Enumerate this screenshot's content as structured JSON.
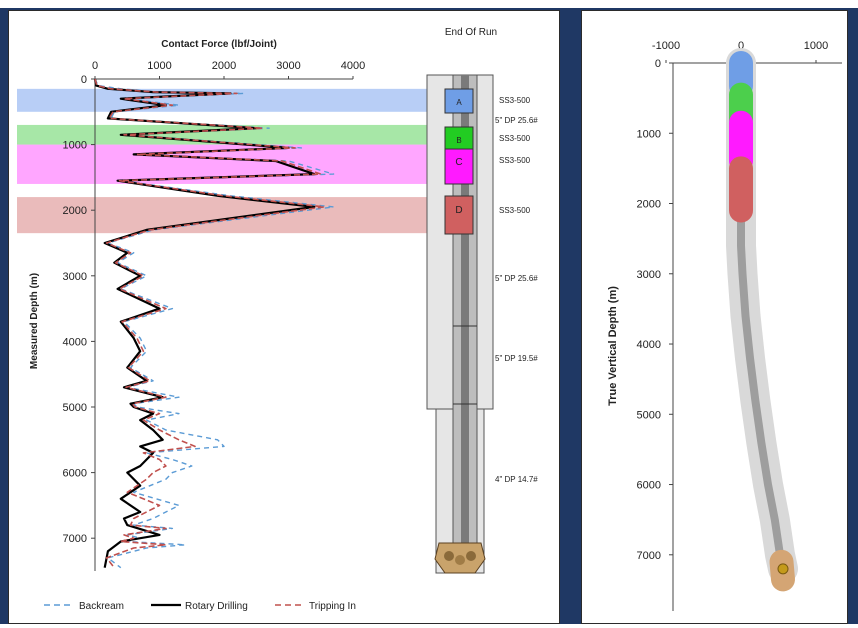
{
  "left_chart": {
    "title": "Contact Force (lbf/Joint)",
    "ylabel": "Measured Depth (m)",
    "x_ticks": [
      "0",
      "1000",
      "2000",
      "3000",
      "4000"
    ],
    "y_ticks": [
      "0",
      "1000",
      "2000",
      "3000",
      "4000",
      "5000",
      "6000",
      "7000"
    ],
    "legend": [
      "Backream",
      "Rotary Drilling",
      "Tripping In"
    ]
  },
  "schematic": {
    "title": "End Of Run",
    "labels": [
      "SS3-500",
      "5\" DP 25.6#",
      "SS3-500",
      "SS3-500",
      "SS3-500",
      "5\" DP 25.6#",
      "5\" DP 19.5#",
      "4\" DP 14.7#"
    ],
    "zone_letters": [
      "A",
      "B",
      "C",
      "D"
    ]
  },
  "right_chart": {
    "ylabel": "True Vertical Depth (m)",
    "x_ticks": [
      "-1000",
      "0",
      "1000"
    ],
    "y_ticks": [
      "0",
      "1000",
      "2000",
      "3000",
      "4000",
      "5000",
      "6000",
      "7000"
    ]
  },
  "chart_data": [
    {
      "type": "line",
      "title": "Contact Force (lbf/Joint)",
      "xlabel": "Contact Force (lbf/Joint)",
      "ylabel": "Measured Depth (m)",
      "xlim": [
        0,
        4000
      ],
      "ylim": [
        7500,
        0
      ],
      "legend_position": "bottom",
      "highlight_bands": [
        {
          "zone": "A",
          "from": 150,
          "to": 500,
          "color": "#7ea6ee"
        },
        {
          "zone": "B",
          "from": 700,
          "to": 1000,
          "color": "#5fd35f"
        },
        {
          "zone": "C",
          "from": 1000,
          "to": 1600,
          "color": "#ff5cff"
        },
        {
          "zone": "D",
          "from": 1800,
          "to": 2350,
          "color": "#d88484"
        }
      ],
      "series": [
        {
          "name": "Backream",
          "color": "#5b9bd5",
          "x": [
            0,
            50,
            400,
            1000,
            2300,
            500,
            1300,
            300,
            250,
            2700,
            500,
            3200,
            700,
            3000,
            3700,
            400,
            2100,
            3700,
            900,
            200,
            600,
            350,
            800,
            400,
            1200,
            450,
            700,
            800,
            550,
            900,
            500,
            1300,
            600,
            650,
            1300,
            800,
            1100,
            1900,
            2000,
            800,
            1200,
            1500,
            1200,
            1100,
            600,
            1300,
            900,
            600,
            1200,
            500,
            700,
            500,
            1400,
            800,
            200,
            400
          ],
          "y": [
            0,
            100,
            150,
            200,
            220,
            300,
            400,
            500,
            600,
            750,
            850,
            1050,
            1150,
            1250,
            1450,
            1550,
            1780,
            1950,
            2300,
            2500,
            2650,
            2800,
            3000,
            3200,
            3500,
            3700,
            3950,
            4150,
            4400,
            4600,
            4700,
            4850,
            4950,
            5000,
            5100,
            5200,
            5350,
            5500,
            5600,
            5700,
            5800,
            5900,
            6000,
            6100,
            6300,
            6500,
            6700,
            6800,
            6850,
            6950,
            7000,
            7050,
            7100,
            7150,
            7300,
            7450
          ]
        },
        {
          "name": "Rotary Drilling",
          "color": "#000000",
          "x": [
            0,
            20,
            200,
            900,
            2100,
            400,
            1100,
            250,
            200,
            2500,
            400,
            3000,
            600,
            2800,
            3400,
            350,
            1900,
            3400,
            800,
            150,
            500,
            300,
            700,
            350,
            1000,
            400,
            600,
            700,
            500,
            800,
            450,
            1050,
            550,
            600,
            900,
            700,
            900,
            1050,
            700,
            900,
            800,
            700,
            500,
            700,
            400,
            700,
            450,
            500,
            1000,
            400,
            200,
            150
          ],
          "y": [
            0,
            100,
            150,
            200,
            220,
            300,
            400,
            500,
            600,
            750,
            850,
            1050,
            1150,
            1250,
            1450,
            1550,
            1780,
            1950,
            2300,
            2500,
            2650,
            2800,
            3000,
            3200,
            3500,
            3700,
            3950,
            4150,
            4400,
            4600,
            4700,
            4850,
            4950,
            5000,
            5100,
            5200,
            5350,
            5500,
            5600,
            5700,
            5800,
            5900,
            6000,
            6200,
            6400,
            6600,
            6700,
            6800,
            6950,
            7050,
            7200,
            7450
          ]
        },
        {
          "name": "Tripping In",
          "color": "#c0504d",
          "x": [
            0,
            30,
            250,
            950,
            2200,
            450,
            1200,
            280,
            220,
            2600,
            450,
            3100,
            650,
            2900,
            3500,
            380,
            2000,
            3550,
            850,
            180,
            550,
            320,
            750,
            380,
            1100,
            420,
            650,
            750,
            520,
            850,
            480,
            1100,
            580,
            620,
            1000,
            750,
            1000,
            1300,
            1550,
            750,
            1000,
            1100,
            900,
            800,
            500,
            1000,
            600,
            550,
            1100,
            450,
            600,
            400,
            1100,
            600,
            180,
            300
          ],
          "y": [
            0,
            100,
            150,
            200,
            220,
            300,
            400,
            500,
            600,
            750,
            850,
            1050,
            1150,
            1250,
            1450,
            1550,
            1780,
            1950,
            2300,
            2500,
            2650,
            2800,
            3000,
            3200,
            3500,
            3700,
            3950,
            4150,
            4400,
            4600,
            4700,
            4850,
            4950,
            5000,
            5100,
            5200,
            5350,
            5500,
            5600,
            5700,
            5800,
            5900,
            6000,
            6100,
            6300,
            6500,
            6700,
            6800,
            6850,
            6950,
            7000,
            7050,
            7100,
            7150,
            7300,
            7450
          ]
        }
      ]
    },
    {
      "type": "line",
      "title": "",
      "xlabel": "",
      "ylabel": "True Vertical Depth (m)",
      "xlim": [
        -1300,
        1300
      ],
      "ylim": [
        7800,
        0
      ],
      "series": [
        {
          "name": "",
          "color": "#9e9e9e",
          "x": [
            0,
            0,
            0,
            0,
            0,
            20,
            60,
            120,
            190,
            270,
            360,
            450,
            520,
            560
          ],
          "y": [
            0,
            1000,
            2000,
            2200,
            2600,
            3000,
            3600,
            4200,
            4800,
            5400,
            6000,
            6500,
            7000,
            7200
          ]
        }
      ],
      "segments": [
        {
          "zone": "A",
          "from": 0,
          "to": 330,
          "color": "#6f9ee6"
        },
        {
          "zone": "B",
          "from": 450,
          "to": 800,
          "color": "#4ccf4c"
        },
        {
          "zone": "C",
          "from": 850,
          "to": 1400,
          "color": "#ff1aff"
        },
        {
          "zone": "D",
          "from": 1500,
          "to": 2100,
          "color": "#d06060"
        },
        {
          "zone": "bit",
          "from": 7100,
          "to": 7350,
          "color": "#d4a574"
        }
      ]
    }
  ]
}
